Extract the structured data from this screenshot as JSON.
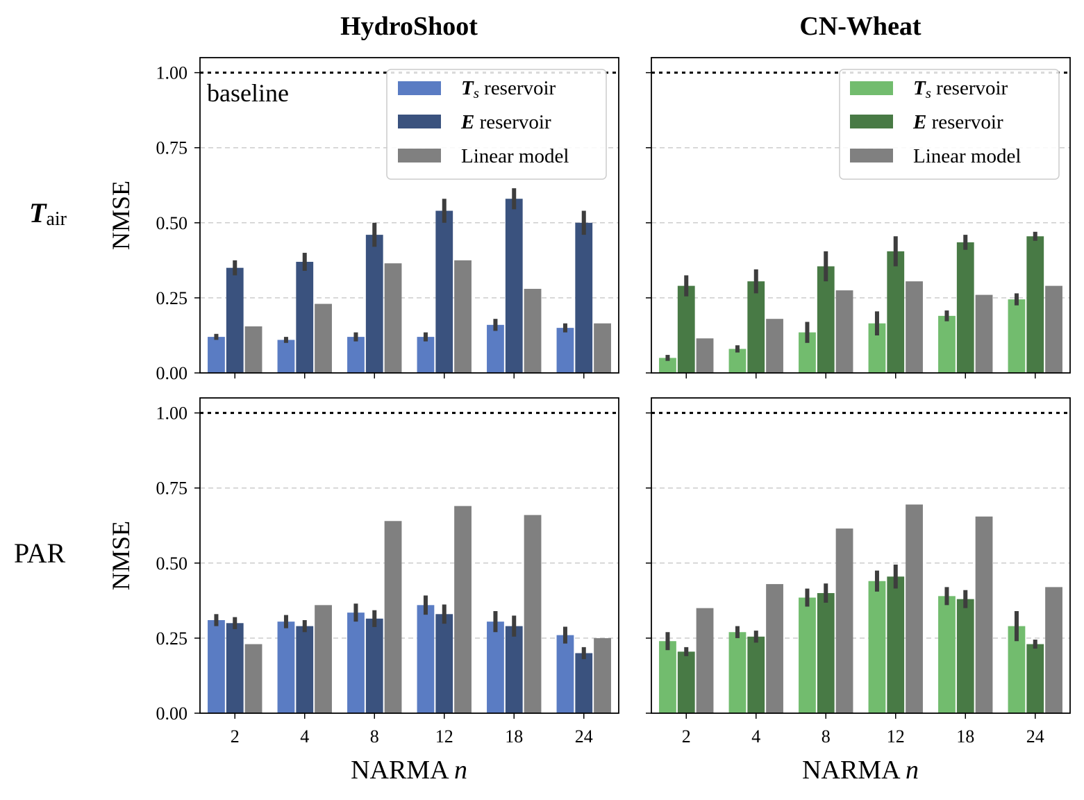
{
  "chart_data": [
    {
      "type": "bar",
      "panel": "top-left",
      "title": "HydroShoot",
      "row_label": "T_air",
      "ylabel": "NMSE",
      "xlabel": "",
      "ylim": [
        0,
        1.05
      ],
      "yticks": [
        "0.00",
        "0.25",
        "0.50",
        "0.75",
        "1.00"
      ],
      "categories": [
        "2",
        "4",
        "8",
        "12",
        "18",
        "24"
      ],
      "baseline": {
        "value": 1.0,
        "label": "baseline"
      },
      "legend": "top-right",
      "grid": "y-dashed",
      "series": [
        {
          "name": "T_s reservoir",
          "color": "#5a7cc3",
          "values": [
            0.12,
            0.11,
            0.12,
            0.12,
            0.16,
            0.15
          ],
          "err": [
            0.01,
            0.01,
            0.015,
            0.015,
            0.02,
            0.015
          ]
        },
        {
          "name": "E reservoir",
          "color": "#3a527e",
          "values": [
            0.35,
            0.37,
            0.46,
            0.54,
            0.58,
            0.5
          ],
          "err": [
            0.025,
            0.03,
            0.04,
            0.04,
            0.035,
            0.04
          ]
        },
        {
          "name": "Linear model",
          "color": "#808080",
          "values": [
            0.155,
            0.23,
            0.365,
            0.375,
            0.28,
            0.165
          ]
        }
      ]
    },
    {
      "type": "bar",
      "panel": "top-right",
      "title": "CN-Wheat",
      "ylabel": "",
      "xlabel": "",
      "ylim": [
        0,
        1.05
      ],
      "categories": [
        "2",
        "4",
        "8",
        "12",
        "18",
        "24"
      ],
      "baseline": {
        "value": 1.0
      },
      "legend": "top-right",
      "grid": "y-dashed",
      "series": [
        {
          "name": "T_s reservoir",
          "color": "#72bc6e",
          "values": [
            0.05,
            0.08,
            0.135,
            0.165,
            0.19,
            0.245
          ],
          "err": [
            0.01,
            0.012,
            0.035,
            0.04,
            0.018,
            0.02
          ]
        },
        {
          "name": "E reservoir",
          "color": "#487a45",
          "values": [
            0.29,
            0.305,
            0.355,
            0.405,
            0.435,
            0.455
          ],
          "err": [
            0.035,
            0.04,
            0.05,
            0.05,
            0.025,
            0.015
          ]
        },
        {
          "name": "Linear model",
          "color": "#808080",
          "values": [
            0.115,
            0.18,
            0.275,
            0.305,
            0.26,
            0.29
          ]
        }
      ]
    },
    {
      "type": "bar",
      "panel": "bottom-left",
      "title": "",
      "row_label": "PAR",
      "ylabel": "NMSE",
      "xlabel": "NARMA n",
      "ylim": [
        0,
        1.05
      ],
      "yticks": [
        "0.00",
        "0.25",
        "0.50",
        "0.75",
        "1.00"
      ],
      "categories": [
        "2",
        "4",
        "8",
        "12",
        "18",
        "24"
      ],
      "baseline": {
        "value": 1.0
      },
      "grid": "y-dashed",
      "series": [
        {
          "name": "T_s reservoir",
          "color": "#5a7cc3",
          "values": [
            0.31,
            0.305,
            0.335,
            0.36,
            0.305,
            0.26
          ],
          "err": [
            0.02,
            0.022,
            0.03,
            0.032,
            0.035,
            0.028
          ]
        },
        {
          "name": "E reservoir",
          "color": "#3a527e",
          "values": [
            0.3,
            0.29,
            0.315,
            0.33,
            0.29,
            0.2
          ],
          "err": [
            0.02,
            0.02,
            0.028,
            0.032,
            0.035,
            0.02
          ]
        },
        {
          "name": "Linear model",
          "color": "#808080",
          "values": [
            0.23,
            0.36,
            0.64,
            0.69,
            0.66,
            0.25
          ]
        }
      ]
    },
    {
      "type": "bar",
      "panel": "bottom-right",
      "title": "",
      "ylabel": "",
      "xlabel": "NARMA n",
      "ylim": [
        0,
        1.05
      ],
      "categories": [
        "2",
        "4",
        "8",
        "12",
        "18",
        "24"
      ],
      "baseline": {
        "value": 1.0
      },
      "grid": "y-dashed",
      "series": [
        {
          "name": "T_s reservoir",
          "color": "#72bc6e",
          "values": [
            0.24,
            0.27,
            0.385,
            0.44,
            0.39,
            0.29
          ],
          "err": [
            0.03,
            0.02,
            0.03,
            0.035,
            0.03,
            0.05
          ]
        },
        {
          "name": "E reservoir",
          "color": "#487a45",
          "values": [
            0.205,
            0.255,
            0.4,
            0.455,
            0.38,
            0.23
          ],
          "err": [
            0.015,
            0.02,
            0.032,
            0.04,
            0.03,
            0.015
          ]
        },
        {
          "name": "Linear model",
          "color": "#808080",
          "values": [
            0.35,
            0.43,
            0.615,
            0.695,
            0.655,
            0.42
          ]
        }
      ]
    }
  ],
  "labels": {
    "col_left": "HydroShoot",
    "col_right": "CN-Wheat",
    "row_top_main": "T",
    "row_top_sub": "air",
    "row_bottom": "PAR",
    "ylabel_top": "NMSE",
    "ylabel_bottom": "NMSE",
    "xlabel_left_main": "NARMA ",
    "xlabel_left_var": "n",
    "xlabel_right_main": "NARMA ",
    "xlabel_right_var": "n",
    "baseline_text": "baseline",
    "legend_ts_var": "T",
    "legend_ts_sub": "s",
    "legend_ts_rest": " reservoir",
    "legend_e_var": "E",
    "legend_e_rest": " reservoir",
    "legend_linear": "Linear model"
  }
}
